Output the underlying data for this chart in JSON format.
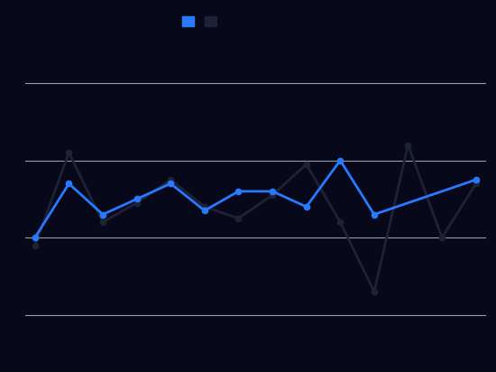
{
  "background_color": "#07091a",
  "plot_bg_color": "#07091a",
  "grid_color": "#ffffff",
  "blue_color": "#2979FF",
  "dark_color": "#1e2235",
  "blue_data": [
    5.5,
    6.2,
    5.8,
    6.0,
    6.2,
    5.85,
    6.1,
    6.1,
    5.9,
    6.5,
    5.8,
    6.25
  ],
  "dark_data": [
    5.4,
    6.6,
    5.7,
    5.95,
    6.25,
    5.9,
    5.75,
    6.05,
    6.45,
    5.7,
    4.8,
    6.7,
    5.5,
    6.2
  ],
  "x_blue": [
    0,
    1,
    2,
    3,
    4,
    5,
    6,
    7,
    8,
    9,
    10,
    13
  ],
  "x_dark": [
    0,
    1,
    2,
    3,
    4,
    5,
    6,
    7,
    8,
    9,
    10,
    11,
    12,
    13
  ],
  "ylim": [
    4.0,
    8.0
  ],
  "xlim": [
    -0.3,
    13.3
  ],
  "yticks": [
    4.5,
    5.5,
    6.5,
    7.5
  ],
  "legend_square_blue": "#2979FF",
  "legend_square_dark": "#1e2235",
  "line_width": 2.0,
  "marker_size": 4.5,
  "grid_alpha": 0.6,
  "grid_linewidth": 0.8
}
